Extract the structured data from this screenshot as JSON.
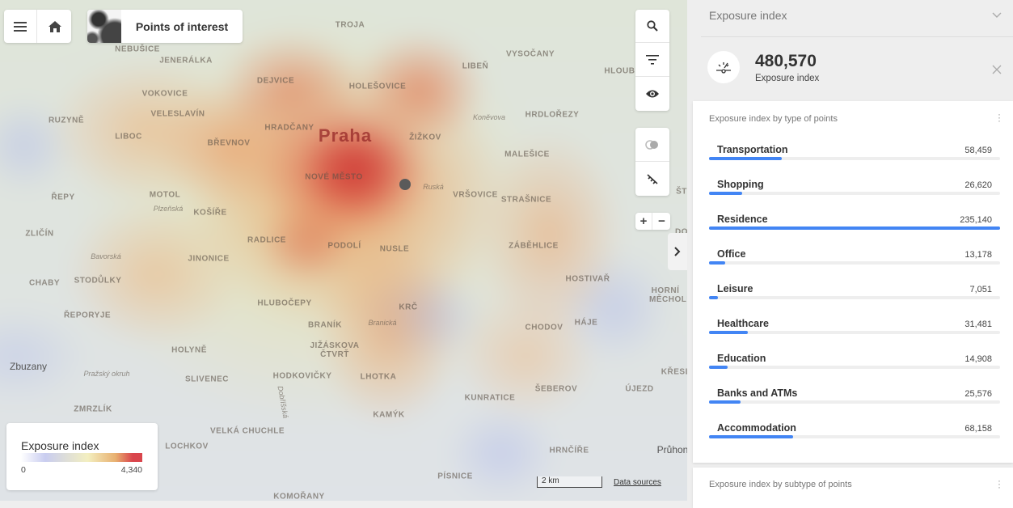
{
  "toolbar": {
    "title": "Points of interest",
    "menu_icon": "menu-icon",
    "home_icon": "home-icon"
  },
  "map": {
    "labels": [
      "TROJA",
      "NEBUŠICE",
      "JENERÁLKA",
      "LIBEŇ",
      "VYSOČANY",
      "HOLEŠOVICE",
      "DEJVICE",
      "VOKOVICE",
      "HLOUBĚ",
      "VELESLAVÍN",
      "RUZYNĚ",
      "Koněvova",
      "HRDLOŘEZY",
      "HRADČANY",
      "LIBOC",
      "BŘEVNOV",
      "ŽIŽKOV",
      "MALEŠICE",
      "NOVÉ MĚSTO",
      "Ruská",
      "VRŠOVICE",
      "STRAŠNICE",
      "ŘEPY",
      "MOTOL",
      "Plzeňská",
      "KOŠÍŘE",
      "ZLIČÍN",
      "RADLICE",
      "PODOLÍ",
      "NUSLE",
      "ZÁBĚHLICE",
      "Bavorská",
      "JINONICE",
      "CHABY",
      "STODŮLKY",
      "HOSTIVAŘ",
      "HORNÍ MĚCHOLUPY",
      "HLUBOČEPY",
      "KRČ",
      "ŘEPORYJE",
      "BRANÍK",
      "Branická",
      "CHODOV",
      "HÁJE",
      "HOLYNĚ",
      "JIŽÁSKOVA ČTVRŤ",
      "Pražský okruh",
      "SLIVENEC",
      "HODKOVIČKY",
      "LHOTKA",
      "KUNRATICE",
      "ŠEBEROV",
      "ÚJEZD",
      "KŘESL",
      "ZMRZLÍK",
      "KAMÝK",
      "VELKÁ CHUCHLE",
      "Dobříšská",
      "LOCHKOV",
      "HRNČÍŘE",
      "PÍSNICE",
      "KOMOŘANY",
      "ŠT",
      "DO"
    ],
    "city": "Praha",
    "towns": [
      "Zbuzany",
      "Průhon"
    ],
    "scale": "2 km",
    "data_sources": "Data sources",
    "controls": [
      "search-icon",
      "filter-icon",
      "eye-icon",
      "toggle-icon",
      "ruler-icon"
    ],
    "zoom_in": "+",
    "zoom_out": "−",
    "legend": {
      "title": "Exposure index",
      "min": "0",
      "max": "4,340",
      "colors": [
        "#c9cdf0",
        "#f3efc0",
        "#e8b070",
        "#d9454c"
      ]
    }
  },
  "panel": {
    "header": "Exposure index",
    "total_value": "480,570",
    "total_label": "Exposure index",
    "accent": "#4285f4",
    "card1": {
      "title": "Exposure index by type of points",
      "items": [
        {
          "label": "Transportation",
          "value": "58,459",
          "n": 58459
        },
        {
          "label": "Shopping",
          "value": "26,620",
          "n": 26620
        },
        {
          "label": "Residence",
          "value": "235,140",
          "n": 235140
        },
        {
          "label": "Office",
          "value": "13,178",
          "n": 13178
        },
        {
          "label": "Leisure",
          "value": "7,051",
          "n": 7051
        },
        {
          "label": "Healthcare",
          "value": "31,481",
          "n": 31481
        },
        {
          "label": "Education",
          "value": "14,908",
          "n": 14908
        },
        {
          "label": "Banks and ATMs",
          "value": "25,576",
          "n": 25576
        },
        {
          "label": "Accommodation",
          "value": "68,158",
          "n": 68158
        }
      ]
    },
    "card2": {
      "title": "Exposure index by subtype of points"
    }
  }
}
